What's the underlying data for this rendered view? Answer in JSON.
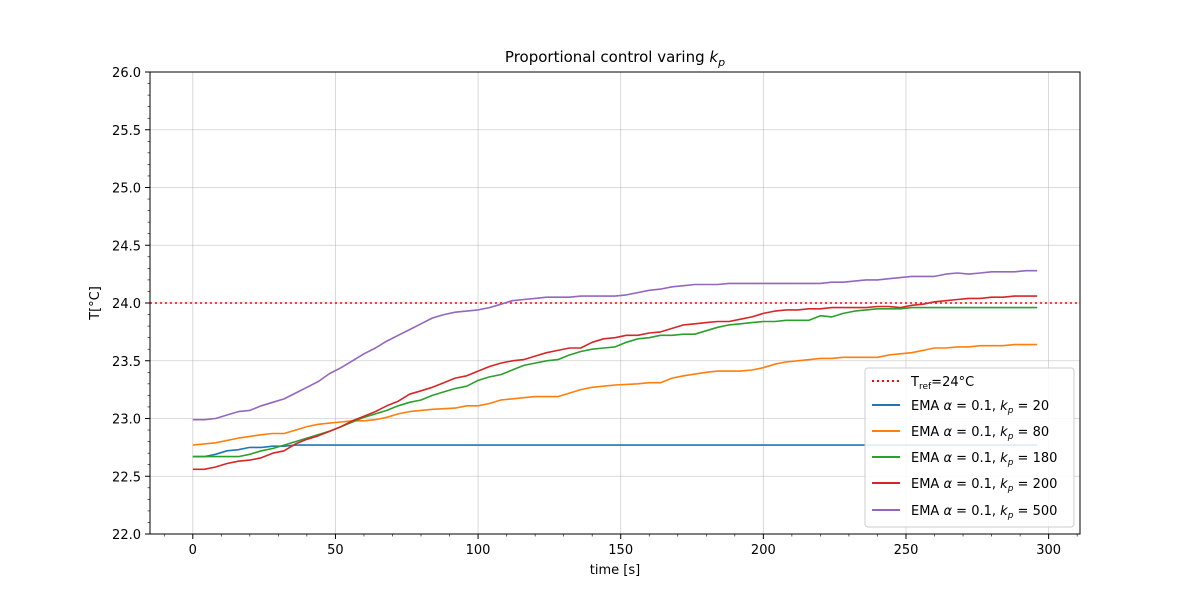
{
  "chart_data": {
    "type": "line",
    "title": "Proportional control varing k_p",
    "title_main": "Proportional control varing ",
    "title_italic": "k",
    "title_sub": "p",
    "xlabel": "time [s]",
    "ylabel": "T[°C]",
    "xlim": [
      -15,
      311
    ],
    "ylim": [
      22.0,
      26.0
    ],
    "xticks": [
      0,
      50,
      100,
      150,
      200,
      250,
      300
    ],
    "yticks": [
      22.0,
      22.5,
      23.0,
      23.5,
      24.0,
      24.5,
      25.0,
      25.5,
      26.0
    ],
    "xtick_labels": [
      "0",
      "50",
      "100",
      "150",
      "200",
      "250",
      "300"
    ],
    "ytick_labels": [
      "22.0",
      "22.5",
      "23.0",
      "23.5",
      "24.0",
      "24.5",
      "25.0",
      "25.5",
      "26.0"
    ],
    "grid": true,
    "legend_position": "lower-right",
    "reference": {
      "value": 24.0,
      "label_main": "T",
      "label_sub": "ref",
      "label_rest": "=24°C",
      "color": "#ff0000",
      "style": "dotted"
    },
    "series": [
      {
        "name": "EMA α = 0.1, k_p = 20",
        "legend_prefix": "EMA ",
        "legend_alpha": "α",
        "legend_mid": " = 0.1, ",
        "legend_k": "k",
        "legend_sub": "p",
        "legend_suffix": " = 20",
        "color": "#1f77b4",
        "x": [
          0,
          4,
          8,
          12,
          16,
          20,
          24,
          28,
          32,
          36,
          40,
          60,
          100,
          150,
          200,
          250,
          296
        ],
        "y": [
          22.67,
          22.67,
          22.69,
          22.72,
          22.73,
          22.75,
          22.75,
          22.76,
          22.76,
          22.77,
          22.77,
          22.77,
          22.77,
          22.77,
          22.77,
          22.77,
          22.77
        ]
      },
      {
        "name": "EMA α = 0.1, k_p = 80",
        "legend_prefix": "EMA ",
        "legend_alpha": "α",
        "legend_mid": " = 0.1, ",
        "legend_k": "k",
        "legend_sub": "p",
        "legend_suffix": " = 80",
        "color": "#ff7f0e",
        "x": [
          0,
          8,
          16,
          24,
          28,
          32,
          36,
          40,
          44,
          48,
          52,
          56,
          60,
          64,
          68,
          72,
          76,
          84,
          92,
          96,
          100,
          104,
          108,
          116,
          120,
          128,
          132,
          136,
          140,
          148,
          156,
          160,
          164,
          168,
          172,
          180,
          184,
          192,
          196,
          200,
          204,
          208,
          212,
          220,
          224,
          228,
          232,
          240,
          244,
          248,
          252,
          256,
          260,
          264,
          268,
          272,
          276,
          280,
          284,
          288,
          292,
          296
        ],
        "y": [
          22.77,
          22.79,
          22.83,
          22.86,
          22.87,
          22.87,
          22.9,
          22.93,
          22.95,
          22.96,
          22.97,
          22.98,
          22.98,
          22.99,
          23.01,
          23.04,
          23.06,
          23.08,
          23.09,
          23.11,
          23.11,
          23.13,
          23.16,
          23.18,
          23.19,
          23.19,
          23.22,
          23.25,
          23.27,
          23.29,
          23.3,
          23.31,
          23.31,
          23.35,
          23.37,
          23.4,
          23.41,
          23.41,
          23.42,
          23.44,
          23.47,
          23.49,
          23.5,
          23.52,
          23.52,
          23.53,
          23.53,
          23.53,
          23.55,
          23.56,
          23.57,
          23.59,
          23.61,
          23.61,
          23.62,
          23.62,
          23.63,
          23.63,
          23.63,
          23.64,
          23.64,
          23.64
        ]
      },
      {
        "name": "EMA α = 0.1, k_p = 180",
        "legend_prefix": "EMA ",
        "legend_alpha": "α",
        "legend_mid": " = 0.1, ",
        "legend_k": "k",
        "legend_sub": "p",
        "legend_suffix": " = 180",
        "color": "#2ca02c",
        "x": [
          0,
          8,
          16,
          20,
          24,
          28,
          32,
          36,
          40,
          44,
          48,
          52,
          56,
          60,
          64,
          68,
          72,
          76,
          80,
          84,
          88,
          92,
          96,
          100,
          104,
          108,
          112,
          116,
          120,
          124,
          128,
          132,
          136,
          140,
          144,
          148,
          152,
          156,
          160,
          164,
          168,
          172,
          176,
          180,
          184,
          188,
          192,
          196,
          200,
          204,
          208,
          216,
          220,
          224,
          228,
          232,
          236,
          240,
          244,
          248,
          252,
          260,
          270,
          280,
          290,
          296
        ],
        "y": [
          22.67,
          22.67,
          22.67,
          22.69,
          22.72,
          22.74,
          22.77,
          22.8,
          22.83,
          22.86,
          22.89,
          22.93,
          22.97,
          23.01,
          23.04,
          23.07,
          23.11,
          23.14,
          23.16,
          23.2,
          23.23,
          23.26,
          23.28,
          23.33,
          23.36,
          23.38,
          23.42,
          23.46,
          23.48,
          23.5,
          23.51,
          23.55,
          23.58,
          23.6,
          23.61,
          23.62,
          23.66,
          23.69,
          23.7,
          23.72,
          23.72,
          23.73,
          23.73,
          23.76,
          23.79,
          23.81,
          23.82,
          23.83,
          23.84,
          23.84,
          23.85,
          23.85,
          23.89,
          23.88,
          23.91,
          23.93,
          23.94,
          23.95,
          23.95,
          23.95,
          23.96,
          23.96,
          23.96,
          23.96,
          23.96,
          23.96
        ]
      },
      {
        "name": "EMA α = 0.1, k_p = 200",
        "legend_prefix": "EMA ",
        "legend_alpha": "α",
        "legend_mid": " = 0.1, ",
        "legend_k": "k",
        "legend_sub": "p",
        "legend_suffix": " = 200",
        "color": "#d62728",
        "x": [
          0,
          4,
          8,
          12,
          16,
          20,
          24,
          28,
          32,
          36,
          40,
          44,
          48,
          52,
          56,
          60,
          64,
          68,
          72,
          76,
          80,
          84,
          88,
          92,
          96,
          100,
          104,
          108,
          112,
          116,
          120,
          124,
          128,
          132,
          136,
          140,
          144,
          148,
          152,
          156,
          160,
          164,
          168,
          172,
          176,
          180,
          184,
          188,
          192,
          196,
          200,
          204,
          208,
          212,
          216,
          220,
          224,
          228,
          232,
          236,
          240,
          244,
          248,
          252,
          256,
          260,
          264,
          268,
          272,
          276,
          280,
          284,
          288,
          292,
          296
        ],
        "y": [
          22.56,
          22.56,
          22.58,
          22.61,
          22.63,
          22.64,
          22.66,
          22.7,
          22.72,
          22.78,
          22.82,
          22.85,
          22.89,
          22.93,
          22.98,
          23.02,
          23.06,
          23.11,
          23.15,
          23.21,
          23.24,
          23.27,
          23.31,
          23.35,
          23.37,
          23.41,
          23.45,
          23.48,
          23.5,
          23.51,
          23.54,
          23.57,
          23.59,
          23.61,
          23.61,
          23.66,
          23.69,
          23.7,
          23.72,
          23.72,
          23.74,
          23.75,
          23.78,
          23.81,
          23.82,
          23.83,
          23.84,
          23.84,
          23.86,
          23.88,
          23.91,
          23.93,
          23.94,
          23.94,
          23.95,
          23.95,
          23.96,
          23.96,
          23.96,
          23.96,
          23.97,
          23.97,
          23.96,
          23.98,
          23.99,
          24.01,
          24.02,
          24.03,
          24.04,
          24.04,
          24.05,
          24.05,
          24.06,
          24.06,
          24.06
        ]
      },
      {
        "name": "EMA α = 0.1, k_p = 500",
        "legend_prefix": "EMA ",
        "legend_alpha": "α",
        "legend_mid": " = 0.1, ",
        "legend_k": "k",
        "legend_sub": "p",
        "legend_suffix": " = 500",
        "color": "#9467bd",
        "x": [
          0,
          4,
          8,
          12,
          16,
          20,
          24,
          28,
          32,
          36,
          40,
          44,
          48,
          52,
          56,
          60,
          64,
          68,
          72,
          76,
          80,
          84,
          88,
          92,
          96,
          100,
          104,
          108,
          112,
          116,
          120,
          124,
          128,
          132,
          136,
          140,
          144,
          148,
          152,
          156,
          160,
          164,
          168,
          172,
          176,
          180,
          184,
          188,
          192,
          200,
          210,
          220,
          224,
          228,
          232,
          236,
          240,
          244,
          248,
          252,
          256,
          260,
          264,
          268,
          272,
          276,
          280,
          284,
          288,
          292,
          296
        ],
        "y": [
          22.99,
          22.99,
          23.0,
          23.03,
          23.06,
          23.07,
          23.11,
          23.14,
          23.17,
          23.22,
          23.27,
          23.32,
          23.39,
          23.44,
          23.5,
          23.56,
          23.61,
          23.67,
          23.72,
          23.77,
          23.82,
          23.87,
          23.9,
          23.92,
          23.93,
          23.94,
          23.96,
          23.99,
          24.02,
          24.03,
          24.04,
          24.05,
          24.05,
          24.05,
          24.06,
          24.06,
          24.06,
          24.06,
          24.07,
          24.09,
          24.11,
          24.12,
          24.14,
          24.15,
          24.16,
          24.16,
          24.16,
          24.17,
          24.17,
          24.17,
          24.17,
          24.17,
          24.18,
          24.18,
          24.19,
          24.2,
          24.2,
          24.21,
          24.22,
          24.23,
          24.23,
          24.23,
          24.25,
          24.26,
          24.25,
          24.26,
          24.27,
          24.27,
          24.27,
          24.28,
          24.28
        ]
      }
    ]
  }
}
